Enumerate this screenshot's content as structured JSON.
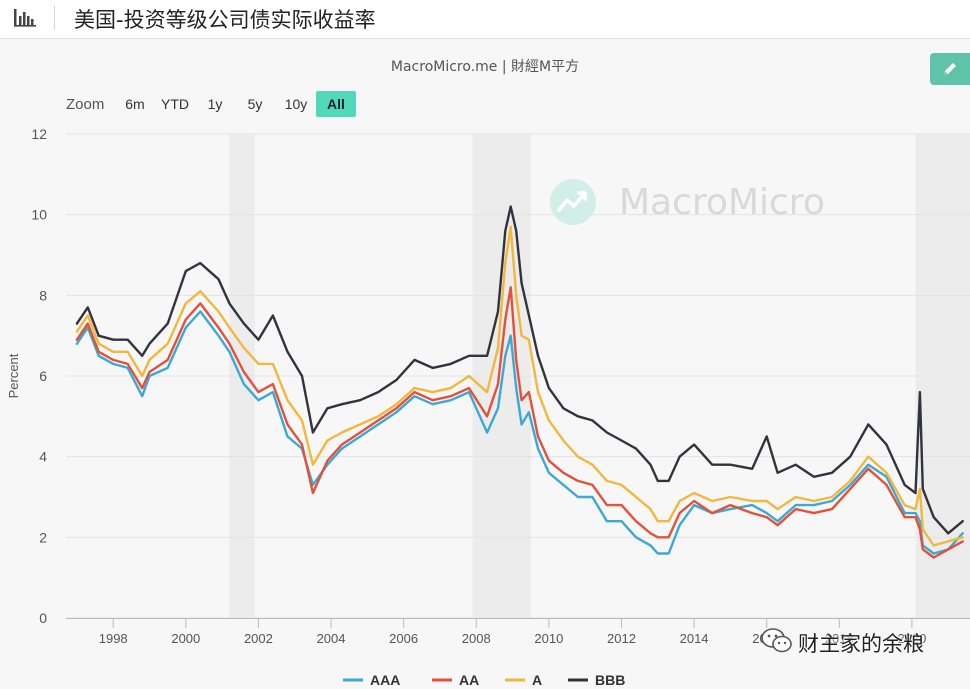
{
  "header": {
    "title": "美国-投资等级公司债实际收益率",
    "icon": "bar-chart-icon"
  },
  "source": "MacroMicro.me | 財經M平方",
  "edit_icon": "pencil-icon",
  "zoom": {
    "label": "Zoom",
    "options": [
      "6m",
      "YTD",
      "1y",
      "5y",
      "10y",
      "All"
    ],
    "selected": "All"
  },
  "watermark": "MacroMicro",
  "wechat_badge": "财主家的余粮",
  "colors": {
    "AAA": "#3aa9d6",
    "AA": "#e4513a",
    "A": "#f2b73d",
    "BBB": "#333340",
    "recession": "#ececec",
    "grid": "#e3e3e3",
    "accent": "#52d9b9"
  },
  "chart_data": {
    "type": "line",
    "title": "美国-投资等级公司债实际收益率",
    "xlabel": "",
    "ylabel": "Percent",
    "ylim": [
      0,
      12
    ],
    "xlim": [
      1996.7,
      2021.6
    ],
    "y_ticks": [
      "0",
      "2",
      "4",
      "6",
      "8",
      "10",
      "12"
    ],
    "x_ticks": [
      "1998",
      "2000",
      "2002",
      "2004",
      "2006",
      "2008",
      "2010",
      "2012",
      "2014",
      "2016",
      "2018",
      "2020"
    ],
    "grid": true,
    "legend": "bottom",
    "recession_bands": [
      [
        2001.2,
        2001.9
      ],
      [
        2007.9,
        2009.5
      ],
      [
        2020.1,
        2021.6
      ]
    ],
    "x": [
      1997.0,
      1997.3,
      1997.6,
      1998.0,
      1998.4,
      1998.8,
      1999.0,
      1999.5,
      2000.0,
      2000.4,
      2000.9,
      2001.2,
      2001.6,
      2002.0,
      2002.4,
      2002.8,
      2003.2,
      2003.5,
      2003.9,
      2004.3,
      2004.8,
      2005.3,
      2005.8,
      2006.3,
      2006.8,
      2007.3,
      2007.8,
      2008.3,
      2008.6,
      2008.8,
      2008.95,
      2009.1,
      2009.25,
      2009.45,
      2009.7,
      2010.0,
      2010.4,
      2010.8,
      2011.2,
      2011.6,
      2012.0,
      2012.4,
      2012.8,
      2013.0,
      2013.3,
      2013.6,
      2014.0,
      2014.5,
      2015.0,
      2015.6,
      2016.0,
      2016.3,
      2016.8,
      2017.3,
      2017.8,
      2018.3,
      2018.8,
      2019.3,
      2019.8,
      2020.1,
      2020.22,
      2020.3,
      2020.6,
      2021.0,
      2021.4
    ],
    "series": [
      {
        "name": "AAA",
        "values": [
          6.8,
          7.2,
          6.5,
          6.3,
          6.2,
          5.5,
          6.0,
          6.2,
          7.2,
          7.6,
          7.0,
          6.6,
          5.8,
          5.4,
          5.6,
          4.5,
          4.2,
          3.3,
          3.8,
          4.2,
          4.5,
          4.8,
          5.1,
          5.5,
          5.3,
          5.4,
          5.6,
          4.6,
          5.2,
          6.5,
          7.0,
          5.7,
          4.8,
          5.1,
          4.2,
          3.6,
          3.3,
          3.0,
          3.0,
          2.4,
          2.4,
          2.0,
          1.8,
          1.6,
          1.6,
          2.3,
          2.8,
          2.6,
          2.7,
          2.8,
          2.6,
          2.4,
          2.8,
          2.8,
          2.9,
          3.3,
          3.8,
          3.5,
          2.6,
          2.6,
          2.4,
          1.8,
          1.6,
          1.7,
          2.1
        ]
      },
      {
        "name": "AA",
        "values": [
          6.9,
          7.3,
          6.6,
          6.4,
          6.3,
          5.7,
          6.1,
          6.4,
          7.4,
          7.8,
          7.2,
          6.8,
          6.1,
          5.6,
          5.8,
          4.8,
          4.3,
          3.1,
          3.9,
          4.3,
          4.6,
          4.9,
          5.2,
          5.6,
          5.4,
          5.5,
          5.7,
          5.0,
          5.8,
          7.4,
          8.2,
          6.4,
          5.4,
          5.6,
          4.5,
          3.9,
          3.6,
          3.4,
          3.3,
          2.8,
          2.8,
          2.4,
          2.1,
          2.0,
          2.0,
          2.6,
          2.9,
          2.6,
          2.8,
          2.6,
          2.5,
          2.3,
          2.7,
          2.6,
          2.7,
          3.2,
          3.7,
          3.3,
          2.5,
          2.5,
          2.2,
          1.7,
          1.5,
          1.7,
          1.9
        ]
      },
      {
        "name": "A",
        "values": [
          7.1,
          7.5,
          6.8,
          6.6,
          6.6,
          6.0,
          6.4,
          6.8,
          7.8,
          8.1,
          7.6,
          7.2,
          6.7,
          6.3,
          6.3,
          5.4,
          4.9,
          3.8,
          4.4,
          4.6,
          4.8,
          5.0,
          5.3,
          5.7,
          5.6,
          5.7,
          6.0,
          5.6,
          6.7,
          8.8,
          9.7,
          8.0,
          7.0,
          6.9,
          5.6,
          4.9,
          4.4,
          4.0,
          3.8,
          3.4,
          3.3,
          3.0,
          2.7,
          2.4,
          2.4,
          2.9,
          3.1,
          2.9,
          3.0,
          2.9,
          2.9,
          2.7,
          3.0,
          2.9,
          3.0,
          3.4,
          4.0,
          3.6,
          2.8,
          2.7,
          3.2,
          2.2,
          1.8,
          1.9,
          2.0
        ]
      },
      {
        "name": "BBB",
        "values": [
          7.3,
          7.7,
          7.0,
          6.9,
          6.9,
          6.5,
          6.8,
          7.3,
          8.6,
          8.8,
          8.4,
          7.8,
          7.3,
          6.9,
          7.5,
          6.6,
          6.0,
          4.6,
          5.2,
          5.3,
          5.4,
          5.6,
          5.9,
          6.4,
          6.2,
          6.3,
          6.5,
          6.5,
          7.6,
          9.6,
          10.2,
          9.6,
          8.3,
          7.5,
          6.5,
          5.7,
          5.2,
          5.0,
          4.9,
          4.6,
          4.4,
          4.2,
          3.8,
          3.4,
          3.4,
          4.0,
          4.3,
          3.8,
          3.8,
          3.7,
          4.5,
          3.6,
          3.8,
          3.5,
          3.6,
          4.0,
          4.8,
          4.3,
          3.3,
          3.1,
          5.6,
          3.2,
          2.5,
          2.1,
          2.4
        ]
      }
    ]
  }
}
